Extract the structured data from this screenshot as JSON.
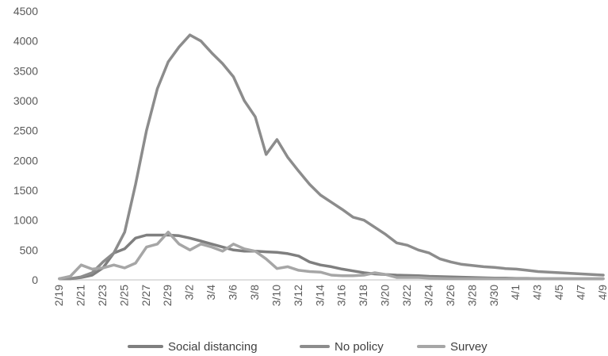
{
  "chart_data": {
    "type": "line",
    "x": [
      "2/19",
      "2/20",
      "2/21",
      "2/22",
      "2/23",
      "2/24",
      "2/25",
      "2/26",
      "2/27",
      "2/28",
      "2/29",
      "3/1",
      "3/2",
      "3/3",
      "3/4",
      "3/5",
      "3/6",
      "3/7",
      "3/8",
      "3/9",
      "3/10",
      "3/11",
      "3/12",
      "3/13",
      "3/14",
      "3/15",
      "3/16",
      "3/17",
      "3/18",
      "3/19",
      "3/20",
      "3/21",
      "3/22",
      "3/23",
      "3/24",
      "3/25",
      "3/26",
      "3/27",
      "3/28",
      "3/29",
      "3/30",
      "3/31",
      "4/1",
      "4/2",
      "4/3",
      "4/4",
      "4/5",
      "4/6",
      "4/7",
      "4/8",
      "4/9"
    ],
    "x_tick_labels": [
      "2/19",
      "2/21",
      "2/23",
      "2/25",
      "2/27",
      "2/29",
      "3/2",
      "3/4",
      "3/6",
      "3/8",
      "3/10",
      "3/12",
      "3/14",
      "3/16",
      "3/18",
      "3/20",
      "3/22",
      "3/24",
      "3/26",
      "3/28",
      "3/30",
      "4/1",
      "4/3",
      "4/5",
      "4/7",
      "4/9"
    ],
    "y_tick_labels": [
      "0",
      "500",
      "1000",
      "1500",
      "2000",
      "2500",
      "3000",
      "3500",
      "4000",
      "4500"
    ],
    "ylim": [
      0,
      4500
    ],
    "grid": false,
    "legend_position": "bottom",
    "series": [
      {
        "name": "Social distancing",
        "color": "#7f7f7f",
        "values": [
          20,
          20,
          40,
          80,
          200,
          450,
          520,
          700,
          750,
          750,
          750,
          740,
          700,
          650,
          600,
          550,
          500,
          480,
          480,
          470,
          460,
          440,
          400,
          300,
          250,
          220,
          180,
          150,
          120,
          100,
          90,
          80,
          75,
          70,
          60,
          55,
          50,
          45,
          40,
          35,
          30,
          30,
          25,
          25,
          20,
          20,
          20,
          20,
          20,
          20,
          20
        ]
      },
      {
        "name": "No policy",
        "color": "#8c8c8c",
        "values": [
          20,
          20,
          50,
          120,
          300,
          450,
          800,
          1600,
          2500,
          3200,
          3650,
          3900,
          4100,
          4000,
          3800,
          3620,
          3400,
          3000,
          2730,
          2100,
          2350,
          2050,
          1820,
          1600,
          1420,
          1300,
          1180,
          1050,
          1000,
          880,
          760,
          620,
          580,
          500,
          450,
          350,
          300,
          260,
          240,
          220,
          210,
          190,
          180,
          160,
          140,
          130,
          120,
          110,
          100,
          90,
          80
        ]
      },
      {
        "name": "Survey",
        "color": "#a6a6a6",
        "values": [
          20,
          60,
          250,
          180,
          200,
          250,
          200,
          280,
          550,
          600,
          800,
          600,
          500,
          600,
          550,
          480,
          600,
          520,
          480,
          350,
          190,
          220,
          160,
          140,
          130,
          80,
          70,
          70,
          80,
          120,
          90,
          40,
          40,
          40,
          30,
          25,
          20,
          20,
          20,
          20,
          20,
          20,
          20,
          20,
          20,
          20,
          20,
          20,
          20,
          20,
          20
        ]
      }
    ]
  }
}
